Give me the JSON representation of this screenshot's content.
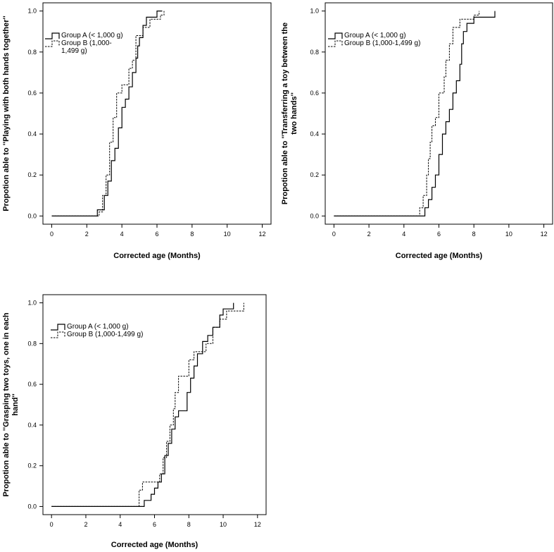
{
  "figure": {
    "description_free": true
  },
  "chart_data": [
    {
      "type": "line",
      "step": true,
      "xlabel": "Corrected age (Months)",
      "ylabel_lines": [
        "Propotion able to ''Playing with both hands together''"
      ],
      "xlim": [
        -0.5,
        12.5
      ],
      "ylim": [
        -0.04,
        1.04
      ],
      "xticks": [
        0,
        2,
        4,
        6,
        8,
        10,
        12
      ],
      "yticks": [
        0.0,
        0.2,
        0.4,
        0.6,
        0.8,
        1.0
      ],
      "ytick_labels": [
        "0.0",
        "0.2",
        "0.4",
        "0.6",
        "0.8",
        "1.0"
      ],
      "legend_position": "top-left",
      "series": [
        {
          "name": "Group A (< 1,000 g)",
          "legend_lines": [
            "Group A (< 1,000 g)"
          ],
          "style": "solid",
          "points": [
            [
              0,
              0
            ],
            [
              2.6,
              0
            ],
            [
              2.6,
              0.03
            ],
            [
              3.0,
              0.03
            ],
            [
              3.0,
              0.1
            ],
            [
              3.2,
              0.1
            ],
            [
              3.2,
              0.17
            ],
            [
              3.4,
              0.17
            ],
            [
              3.4,
              0.27
            ],
            [
              3.6,
              0.27
            ],
            [
              3.6,
              0.33
            ],
            [
              3.8,
              0.33
            ],
            [
              3.8,
              0.43
            ],
            [
              4.0,
              0.43
            ],
            [
              4.0,
              0.53
            ],
            [
              4.2,
              0.53
            ],
            [
              4.2,
              0.57
            ],
            [
              4.4,
              0.57
            ],
            [
              4.4,
              0.63
            ],
            [
              4.6,
              0.63
            ],
            [
              4.6,
              0.7
            ],
            [
              4.8,
              0.7
            ],
            [
              4.8,
              0.77
            ],
            [
              4.9,
              0.77
            ],
            [
              4.9,
              0.83
            ],
            [
              5.0,
              0.83
            ],
            [
              5.0,
              0.87
            ],
            [
              5.2,
              0.87
            ],
            [
              5.2,
              0.93
            ],
            [
              5.4,
              0.93
            ],
            [
              5.4,
              0.97
            ],
            [
              6.0,
              0.97
            ],
            [
              6.0,
              1.0
            ],
            [
              6.3,
              1.0
            ]
          ]
        },
        {
          "name": "Group B (1,000-1,499 g)",
          "legend_lines": [
            "Group B (1,000-",
            "1,499 g)"
          ],
          "style": "dashed",
          "points": [
            [
              0,
              0
            ],
            [
              2.7,
              0
            ],
            [
              2.7,
              0.02
            ],
            [
              2.9,
              0.02
            ],
            [
              2.9,
              0.1
            ],
            [
              3.1,
              0.1
            ],
            [
              3.1,
              0.2
            ],
            [
              3.3,
              0.2
            ],
            [
              3.3,
              0.36
            ],
            [
              3.5,
              0.36
            ],
            [
              3.5,
              0.48
            ],
            [
              3.7,
              0.48
            ],
            [
              3.7,
              0.6
            ],
            [
              4.0,
              0.6
            ],
            [
              4.0,
              0.64
            ],
            [
              4.4,
              0.64
            ],
            [
              4.4,
              0.72
            ],
            [
              4.6,
              0.72
            ],
            [
              4.6,
              0.76
            ],
            [
              4.8,
              0.76
            ],
            [
              4.8,
              0.88
            ],
            [
              5.2,
              0.88
            ],
            [
              5.2,
              0.92
            ],
            [
              5.6,
              0.92
            ],
            [
              5.6,
              0.96
            ],
            [
              6.2,
              0.96
            ],
            [
              6.2,
              0.98
            ],
            [
              6.4,
              0.98
            ],
            [
              6.4,
              1.0
            ]
          ]
        }
      ]
    },
    {
      "type": "line",
      "step": true,
      "xlabel": "Corrected age (Months)",
      "ylabel_lines": [
        "Propotion able to ''Transferring a toy between the",
        "two hands''"
      ],
      "xlim": [
        -0.5,
        12.5
      ],
      "ylim": [
        -0.04,
        1.04
      ],
      "xticks": [
        0,
        2,
        4,
        6,
        8,
        10,
        12
      ],
      "yticks": [
        0.0,
        0.2,
        0.4,
        0.6,
        0.8,
        1.0
      ],
      "ytick_labels": [
        "0.0",
        "0.2",
        "0.4",
        "0.6",
        "0.8",
        "1.0"
      ],
      "legend_position": "top-left",
      "series": [
        {
          "name": "Group A (< 1,000 g)",
          "legend_lines": [
            "Group A (< 1,000 g)"
          ],
          "style": "solid",
          "points": [
            [
              0,
              0
            ],
            [
              5.2,
              0
            ],
            [
              5.2,
              0.04
            ],
            [
              5.4,
              0.04
            ],
            [
              5.4,
              0.08
            ],
            [
              5.6,
              0.08
            ],
            [
              5.6,
              0.14
            ],
            [
              5.8,
              0.14
            ],
            [
              5.8,
              0.2
            ],
            [
              6.0,
              0.2
            ],
            [
              6.0,
              0.3
            ],
            [
              6.2,
              0.3
            ],
            [
              6.2,
              0.4
            ],
            [
              6.4,
              0.4
            ],
            [
              6.4,
              0.46
            ],
            [
              6.6,
              0.46
            ],
            [
              6.6,
              0.52
            ],
            [
              6.8,
              0.52
            ],
            [
              6.8,
              0.6
            ],
            [
              7.0,
              0.6
            ],
            [
              7.0,
              0.66
            ],
            [
              7.2,
              0.66
            ],
            [
              7.2,
              0.74
            ],
            [
              7.3,
              0.74
            ],
            [
              7.3,
              0.84
            ],
            [
              7.4,
              0.84
            ],
            [
              7.4,
              0.9
            ],
            [
              7.6,
              0.9
            ],
            [
              7.6,
              0.94
            ],
            [
              8.0,
              0.94
            ],
            [
              8.0,
              0.97
            ],
            [
              9.2,
              0.97
            ],
            [
              9.2,
              1.0
            ]
          ]
        },
        {
          "name": "Group B (1,000-1,499 g)",
          "legend_lines": [
            "Group B (1,000-1,499 g)"
          ],
          "style": "dashed",
          "points": [
            [
              0,
              0
            ],
            [
              4.9,
              0
            ],
            [
              4.9,
              0.04
            ],
            [
              5.1,
              0.04
            ],
            [
              5.1,
              0.1
            ],
            [
              5.3,
              0.1
            ],
            [
              5.3,
              0.2
            ],
            [
              5.4,
              0.2
            ],
            [
              5.4,
              0.28
            ],
            [
              5.5,
              0.28
            ],
            [
              5.5,
              0.36
            ],
            [
              5.6,
              0.36
            ],
            [
              5.6,
              0.44
            ],
            [
              5.8,
              0.44
            ],
            [
              5.8,
              0.48
            ],
            [
              6.0,
              0.48
            ],
            [
              6.0,
              0.6
            ],
            [
              6.3,
              0.6
            ],
            [
              6.3,
              0.68
            ],
            [
              6.4,
              0.68
            ],
            [
              6.4,
              0.76
            ],
            [
              6.6,
              0.76
            ],
            [
              6.6,
              0.84
            ],
            [
              6.8,
              0.84
            ],
            [
              6.8,
              0.92
            ],
            [
              7.2,
              0.92
            ],
            [
              7.2,
              0.96
            ],
            [
              8.0,
              0.96
            ],
            [
              8.0,
              0.98
            ],
            [
              8.3,
              0.98
            ],
            [
              8.3,
              1.0
            ]
          ]
        }
      ]
    },
    {
      "type": "line",
      "step": true,
      "xlabel": "Corrected age (Months)",
      "ylabel_lines": [
        "Propotion able to ''Grasping two toys, one in each",
        "hand''"
      ],
      "xlim": [
        -0.5,
        12.5
      ],
      "ylim": [
        -0.04,
        1.04
      ],
      "xticks": [
        0,
        2,
        4,
        6,
        8,
        10,
        12
      ],
      "yticks": [
        0.0,
        0.2,
        0.4,
        0.6,
        0.8,
        1.0
      ],
      "ytick_labels": [
        "0.0",
        "0.2",
        "0.4",
        "0.6",
        "0.8",
        "1.0"
      ],
      "legend_position": "top-left",
      "series": [
        {
          "name": "Group A (< 1,000 g)",
          "legend_lines": [
            "Group A (< 1,000 g)"
          ],
          "style": "solid",
          "points": [
            [
              0,
              0
            ],
            [
              5.4,
              0
            ],
            [
              5.4,
              0.03
            ],
            [
              5.8,
              0.03
            ],
            [
              5.8,
              0.06
            ],
            [
              6.0,
              0.06
            ],
            [
              6.0,
              0.09
            ],
            [
              6.2,
              0.09
            ],
            [
              6.2,
              0.12
            ],
            [
              6.4,
              0.12
            ],
            [
              6.4,
              0.16
            ],
            [
              6.6,
              0.16
            ],
            [
              6.6,
              0.25
            ],
            [
              6.8,
              0.25
            ],
            [
              6.8,
              0.31
            ],
            [
              7.0,
              0.31
            ],
            [
              7.0,
              0.38
            ],
            [
              7.2,
              0.38
            ],
            [
              7.2,
              0.44
            ],
            [
              7.4,
              0.44
            ],
            [
              7.4,
              0.47
            ],
            [
              7.9,
              0.47
            ],
            [
              7.9,
              0.56
            ],
            [
              8.1,
              0.56
            ],
            [
              8.1,
              0.63
            ],
            [
              8.3,
              0.63
            ],
            [
              8.3,
              0.69
            ],
            [
              8.5,
              0.69
            ],
            [
              8.5,
              0.75
            ],
            [
              8.8,
              0.75
            ],
            [
              8.8,
              0.81
            ],
            [
              9.1,
              0.81
            ],
            [
              9.1,
              0.84
            ],
            [
              9.4,
              0.84
            ],
            [
              9.4,
              0.88
            ],
            [
              9.8,
              0.88
            ],
            [
              9.8,
              0.94
            ],
            [
              10.0,
              0.94
            ],
            [
              10.0,
              0.97
            ],
            [
              10.6,
              0.97
            ],
            [
              10.6,
              1.0
            ]
          ]
        },
        {
          "name": "Group B (1,000-1,499 g)",
          "legend_lines": [
            "Group B (1,000-1,499 g)"
          ],
          "style": "dashed",
          "points": [
            [
              0,
              0
            ],
            [
              5.1,
              0
            ],
            [
              5.1,
              0.08
            ],
            [
              5.3,
              0.08
            ],
            [
              5.3,
              0.12
            ],
            [
              6.3,
              0.12
            ],
            [
              6.3,
              0.16
            ],
            [
              6.5,
              0.16
            ],
            [
              6.5,
              0.24
            ],
            [
              6.7,
              0.24
            ],
            [
              6.7,
              0.32
            ],
            [
              6.9,
              0.32
            ],
            [
              6.9,
              0.4
            ],
            [
              7.1,
              0.4
            ],
            [
              7.1,
              0.48
            ],
            [
              7.2,
              0.48
            ],
            [
              7.2,
              0.56
            ],
            [
              7.4,
              0.56
            ],
            [
              7.4,
              0.64
            ],
            [
              8.0,
              0.64
            ],
            [
              8.0,
              0.72
            ],
            [
              8.3,
              0.72
            ],
            [
              8.3,
              0.76
            ],
            [
              9.0,
              0.76
            ],
            [
              9.0,
              0.8
            ],
            [
              9.4,
              0.8
            ],
            [
              9.4,
              0.88
            ],
            [
              9.8,
              0.88
            ],
            [
              9.8,
              0.92
            ],
            [
              10.2,
              0.92
            ],
            [
              10.2,
              0.96
            ],
            [
              11.2,
              0.96
            ],
            [
              11.2,
              1.0
            ]
          ]
        }
      ]
    }
  ]
}
